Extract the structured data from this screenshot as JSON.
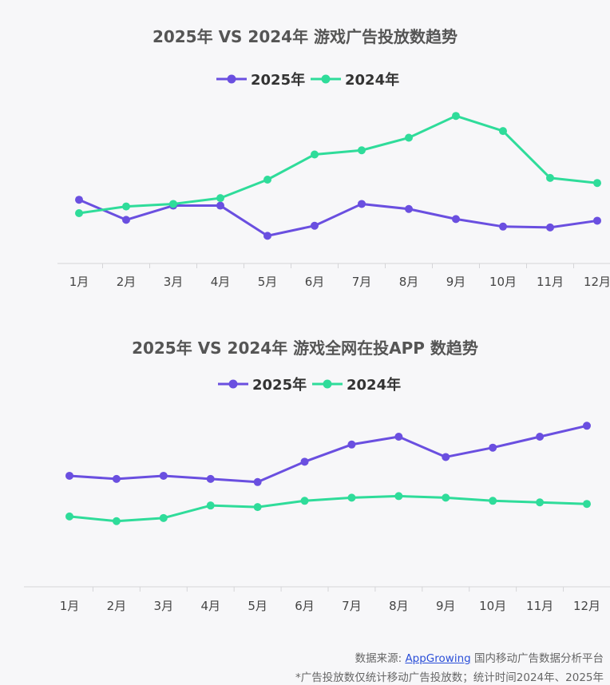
{
  "colors": {
    "series_2025": "#6a4fe0",
    "series_2024": "#2fdc9a",
    "axis": "#d5d5d8",
    "title": "#555555",
    "tick": "#444444"
  },
  "chart_data": [
    {
      "type": "line",
      "title": "2025年 VS 2024年 游戏广告投放数趋势",
      "categories": [
        "1月",
        "2月",
        "3月",
        "4月",
        "5月",
        "6月",
        "7月",
        "8月",
        "9月",
        "10月",
        "11月",
        "12月"
      ],
      "series": [
        {
          "name": "2025年",
          "values": [
            56,
            32,
            49,
            49,
            13,
            25,
            51,
            45,
            33,
            24,
            23,
            31
          ]
        },
        {
          "name": "2024年",
          "values": [
            40,
            48,
            51,
            58,
            80,
            110,
            115,
            130,
            156,
            138,
            82,
            76
          ]
        }
      ],
      "ylim": [
        -20,
        180
      ],
      "xlabel": "",
      "ylabel": "",
      "grid": false,
      "legend": "top-center"
    },
    {
      "type": "line",
      "title": "2025年 VS 2024年 游戏全网在投APP 数趋势",
      "categories": [
        "1月",
        "2月",
        "3月",
        "4月",
        "5月",
        "6月",
        "7月",
        "8月",
        "9月",
        "10月",
        "11月",
        "12月"
      ],
      "series": [
        {
          "name": "2025年",
          "values": [
            71,
            69,
            71,
            69,
            67,
            80,
            91,
            96,
            83,
            89,
            96,
            103
          ]
        },
        {
          "name": "2024年",
          "values": [
            45,
            42,
            44,
            52,
            51,
            55,
            57,
            58,
            57,
            55,
            54,
            53
          ]
        }
      ],
      "ylim": [
        0,
        120
      ],
      "xlabel": "",
      "ylabel": "",
      "grid": false,
      "legend": "top-center"
    }
  ],
  "footer": {
    "source_label": "数据来源: ",
    "source_link": "AppGrowing",
    "source_suffix": " 国内移动广告数据分析平台",
    "note": "*广告投放数仅统计移动广告投放数；统计时间2024年、2025年"
  }
}
